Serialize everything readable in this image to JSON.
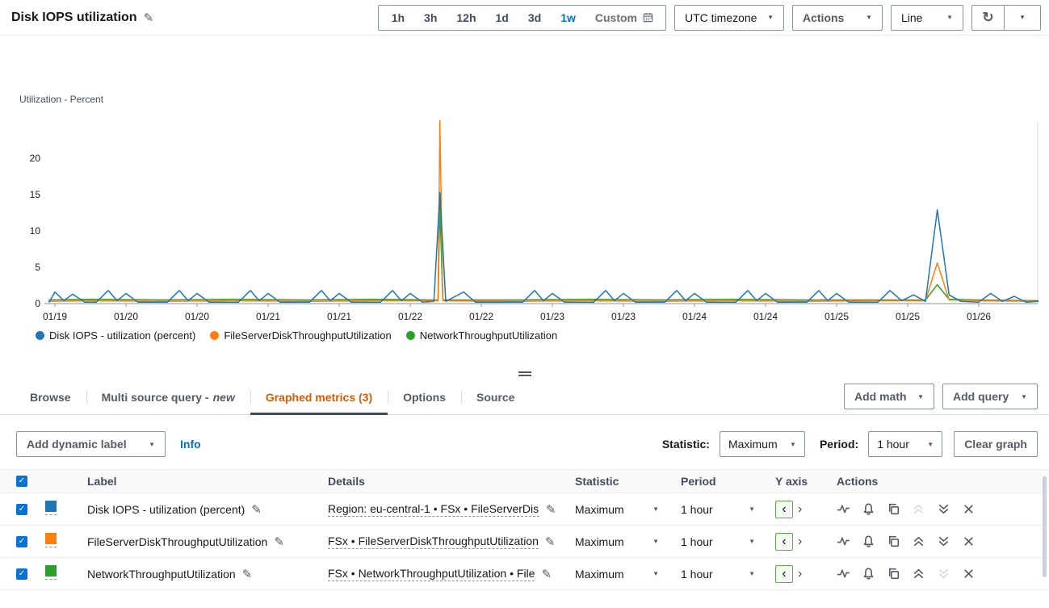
{
  "header": {
    "title": "Disk IOPS utilization",
    "time_ranges": [
      "1h",
      "3h",
      "12h",
      "1d",
      "3d",
      "1w"
    ],
    "active_range": "1w",
    "custom_label": "Custom",
    "timezone_label": "UTC timezone",
    "actions_label": "Actions",
    "chart_type_label": "Line"
  },
  "icons": {
    "caret_down": "▼",
    "pencil": "✎",
    "refresh": "↻",
    "check": "✓",
    "yaxis_left": "‹",
    "yaxis_right": "›"
  },
  "chart_data": {
    "type": "line",
    "title": "Disk IOPS utilization",
    "xlabel": "",
    "ylabel": "Utilization - Percent",
    "ylim": [
      0,
      27
    ],
    "yticks": [
      0,
      5,
      10,
      15,
      20
    ],
    "grid": false,
    "legend_position": "bottom-left",
    "x_unit": "hours since 01/19 00:00 UTC",
    "x_ticks": [
      6,
      18,
      30,
      42,
      54,
      66,
      78,
      90,
      102,
      114,
      126,
      138,
      150,
      162
    ],
    "x_tick_labels": [
      "01/19",
      "01/20",
      "01/20",
      "01/21",
      "01/21",
      "01/22",
      "01/22",
      "01/23",
      "01/23",
      "01/24",
      "01/24",
      "01/25",
      "01/25",
      "01/26"
    ],
    "series": [
      {
        "name": "Disk IOPS - utilization (percent)",
        "color": "#1f77b4",
        "points": [
          [
            5,
            0.2
          ],
          [
            6,
            1.6
          ],
          [
            7.5,
            0.4
          ],
          [
            9,
            1.3
          ],
          [
            11,
            0.2
          ],
          [
            13,
            0.2
          ],
          [
            15,
            1.8
          ],
          [
            16.5,
            0.4
          ],
          [
            18,
            1.4
          ],
          [
            20,
            0.2
          ],
          [
            25,
            0.2
          ],
          [
            27,
            1.8
          ],
          [
            28.5,
            0.4
          ],
          [
            30,
            1.4
          ],
          [
            32,
            0.2
          ],
          [
            37,
            0.2
          ],
          [
            39,
            1.8
          ],
          [
            40.5,
            0.4
          ],
          [
            42,
            1.4
          ],
          [
            44,
            0.2
          ],
          [
            49,
            0.2
          ],
          [
            51,
            1.8
          ],
          [
            52.5,
            0.4
          ],
          [
            54,
            1.4
          ],
          [
            56,
            0.2
          ],
          [
            61,
            0.2
          ],
          [
            63,
            1.8
          ],
          [
            64.5,
            0.4
          ],
          [
            66,
            1.4
          ],
          [
            68,
            0.2
          ],
          [
            70,
            0.3
          ],
          [
            71,
            15.3
          ],
          [
            72,
            0.3
          ],
          [
            75,
            1.6
          ],
          [
            77,
            0.2
          ],
          [
            85,
            0.2
          ],
          [
            87,
            1.8
          ],
          [
            88.5,
            0.4
          ],
          [
            90,
            1.4
          ],
          [
            92,
            0.2
          ],
          [
            97,
            0.2
          ],
          [
            99,
            1.8
          ],
          [
            100.5,
            0.4
          ],
          [
            102,
            1.4
          ],
          [
            104,
            0.2
          ],
          [
            109,
            0.2
          ],
          [
            111,
            1.8
          ],
          [
            112.5,
            0.4
          ],
          [
            114,
            1.4
          ],
          [
            116,
            0.2
          ],
          [
            121,
            0.2
          ],
          [
            123,
            1.8
          ],
          [
            124.5,
            0.4
          ],
          [
            126,
            1.4
          ],
          [
            128,
            0.2
          ],
          [
            133,
            0.2
          ],
          [
            135,
            1.8
          ],
          [
            136.5,
            0.4
          ],
          [
            138,
            1.4
          ],
          [
            140,
            0.2
          ],
          [
            145,
            0.2
          ],
          [
            147,
            1.8
          ],
          [
            149,
            0.4
          ],
          [
            151,
            1.2
          ],
          [
            153,
            0.3
          ],
          [
            155,
            12.9
          ],
          [
            157,
            1.2
          ],
          [
            159,
            0.3
          ],
          [
            162,
            0.2
          ],
          [
            164,
            1.4
          ],
          [
            166,
            0.3
          ],
          [
            168,
            1.0
          ],
          [
            170,
            0.2
          ],
          [
            172,
            0.3
          ]
        ]
      },
      {
        "name": "FileServerDiskThroughputUtilization",
        "color": "#ff7f0e",
        "points": [
          [
            5,
            0.3
          ],
          [
            12,
            0.4
          ],
          [
            24,
            0.3
          ],
          [
            36,
            0.4
          ],
          [
            48,
            0.3
          ],
          [
            60,
            0.4
          ],
          [
            70,
            0.4
          ],
          [
            70.7,
            0.4
          ],
          [
            71,
            25.2
          ],
          [
            71.5,
            0.4
          ],
          [
            84,
            0.3
          ],
          [
            96,
            0.4
          ],
          [
            108,
            0.3
          ],
          [
            120,
            0.4
          ],
          [
            132,
            0.3
          ],
          [
            144,
            0.4
          ],
          [
            153,
            0.4
          ],
          [
            155,
            5.6
          ],
          [
            157,
            0.5
          ],
          [
            162,
            0.4
          ],
          [
            172,
            0.3
          ]
        ]
      },
      {
        "name": "NetworkThroughputUtilization",
        "color": "#2ca02c",
        "points": [
          [
            5,
            0.5
          ],
          [
            12,
            0.6
          ],
          [
            24,
            0.5
          ],
          [
            36,
            0.6
          ],
          [
            48,
            0.5
          ],
          [
            60,
            0.6
          ],
          [
            70,
            0.5
          ],
          [
            70.7,
            0.5
          ],
          [
            71,
            13.8
          ],
          [
            71.5,
            0.5
          ],
          [
            84,
            0.5
          ],
          [
            96,
            0.6
          ],
          [
            108,
            0.5
          ],
          [
            120,
            0.6
          ],
          [
            132,
            0.5
          ],
          [
            144,
            0.5
          ],
          [
            153,
            0.5
          ],
          [
            155,
            2.6
          ],
          [
            157,
            0.6
          ],
          [
            162,
            0.5
          ],
          [
            172,
            0.4
          ]
        ]
      }
    ]
  },
  "tabs": {
    "items": [
      "Browse",
      "Multi source query -",
      "Graphed metrics (3)",
      "Options",
      "Source"
    ],
    "new_suffix": "new",
    "active_index": 2
  },
  "tab_actions": {
    "add_math": "Add math",
    "add_query": "Add query"
  },
  "toolbar": {
    "add_dynamic_label": "Add dynamic label",
    "info": "Info",
    "statistic_label": "Statistic:",
    "statistic_value": "Maximum",
    "period_label": "Period:",
    "period_value": "1 hour",
    "clear_graph": "Clear graph"
  },
  "table": {
    "columns": [
      "Label",
      "Details",
      "Statistic",
      "Period",
      "Y axis",
      "Actions"
    ],
    "rows": [
      {
        "checked": true,
        "color": "#1f77b4",
        "label": "Disk IOPS - utilization (percent)",
        "details": "Region: eu-central-1 • FSx • FileServerDisk",
        "statistic": "Maximum",
        "period": "1 hour"
      },
      {
        "checked": true,
        "color": "#ff7f0e",
        "label": "FileServerDiskThroughputUtilization",
        "details": "FSx • FileServerDiskThroughputUtilization",
        "statistic": "Maximum",
        "period": "1 hour"
      },
      {
        "checked": true,
        "color": "#2ca02c",
        "label": "NetworkThroughputUtilization",
        "details": "FSx • NetworkThroughputUtilization • File",
        "statistic": "Maximum",
        "period": "1 hour"
      }
    ]
  }
}
